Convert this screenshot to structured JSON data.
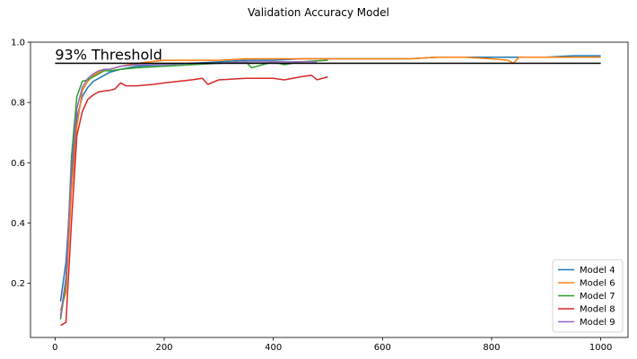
{
  "chart_data": {
    "type": "line",
    "title": "Validation Accuracy Model",
    "xlabel": "",
    "ylabel": "",
    "xlim": [
      -45,
      1050
    ],
    "ylim": [
      0.02,
      1.0
    ],
    "xticks": [
      0,
      200,
      400,
      600,
      800,
      1000
    ],
    "yticks": [
      0.2,
      0.4,
      0.6,
      0.8,
      1.0
    ],
    "grid": false,
    "legend_position": "bottom-right",
    "threshold": {
      "value": 0.93,
      "x_start": 0,
      "x_end": 1000,
      "label": "93% Threshold",
      "color": "#000000"
    },
    "series": [
      {
        "name": "Model 4",
        "color": "#1f77b4",
        "x": [
          10,
          20,
          30,
          40,
          50,
          60,
          70,
          80,
          90,
          100,
          120,
          150,
          200,
          250,
          300,
          350,
          400,
          450,
          500,
          550,
          600,
          650,
          700,
          750,
          800,
          850,
          900,
          950,
          1000
        ],
        "y": [
          0.14,
          0.27,
          0.55,
          0.75,
          0.82,
          0.85,
          0.87,
          0.88,
          0.89,
          0.9,
          0.91,
          0.92,
          0.925,
          0.93,
          0.935,
          0.94,
          0.94,
          0.945,
          0.945,
          0.945,
          0.945,
          0.945,
          0.95,
          0.95,
          0.95,
          0.95,
          0.95,
          0.955,
          0.955
        ]
      },
      {
        "name": "Model 6",
        "color": "#ff7f0e",
        "x": [
          10,
          20,
          30,
          40,
          50,
          60,
          70,
          80,
          90,
          100,
          120,
          150,
          200,
          250,
          300,
          350,
          400,
          450,
          500,
          550,
          600,
          650,
          700,
          750,
          800,
          830,
          840,
          850,
          900,
          950,
          1000
        ],
        "y": [
          0.11,
          0.17,
          0.5,
          0.72,
          0.84,
          0.87,
          0.89,
          0.9,
          0.91,
          0.91,
          0.92,
          0.93,
          0.94,
          0.94,
          0.94,
          0.945,
          0.945,
          0.945,
          0.945,
          0.945,
          0.945,
          0.945,
          0.95,
          0.95,
          0.945,
          0.94,
          0.93,
          0.95,
          0.95,
          0.95,
          0.95
        ]
      },
      {
        "name": "Model 7",
        "color": "#2ca02c",
        "x": [
          10,
          20,
          30,
          40,
          50,
          60,
          70,
          80,
          90,
          100,
          120,
          150,
          200,
          250,
          300,
          350,
          360,
          400,
          420,
          450,
          500
        ],
        "y": [
          0.08,
          0.2,
          0.62,
          0.82,
          0.87,
          0.875,
          0.885,
          0.895,
          0.905,
          0.905,
          0.91,
          0.915,
          0.92,
          0.925,
          0.93,
          0.935,
          0.915,
          0.935,
          0.925,
          0.935,
          0.94
        ]
      },
      {
        "name": "Model 8",
        "color": "#d62728",
        "x": [
          10,
          20,
          30,
          40,
          50,
          60,
          70,
          80,
          90,
          100,
          110,
          120,
          130,
          150,
          180,
          200,
          250,
          270,
          280,
          300,
          350,
          400,
          420,
          450,
          470,
          480,
          500
        ],
        "y": [
          0.06,
          0.07,
          0.4,
          0.69,
          0.77,
          0.81,
          0.825,
          0.835,
          0.838,
          0.84,
          0.845,
          0.865,
          0.855,
          0.855,
          0.86,
          0.865,
          0.875,
          0.88,
          0.86,
          0.875,
          0.88,
          0.88,
          0.875,
          0.885,
          0.89,
          0.875,
          0.885
        ]
      },
      {
        "name": "Model 9",
        "color": "#9467bd",
        "x": [
          10,
          20,
          30,
          40,
          50,
          60,
          70,
          80,
          90,
          100,
          120,
          150,
          200,
          250,
          300,
          350,
          400,
          450,
          480
        ],
        "y": [
          0.09,
          0.22,
          0.58,
          0.78,
          0.85,
          0.88,
          0.895,
          0.905,
          0.91,
          0.91,
          0.92,
          0.925,
          0.925,
          0.93,
          0.93,
          0.935,
          0.935,
          0.935,
          0.935
        ]
      }
    ]
  }
}
